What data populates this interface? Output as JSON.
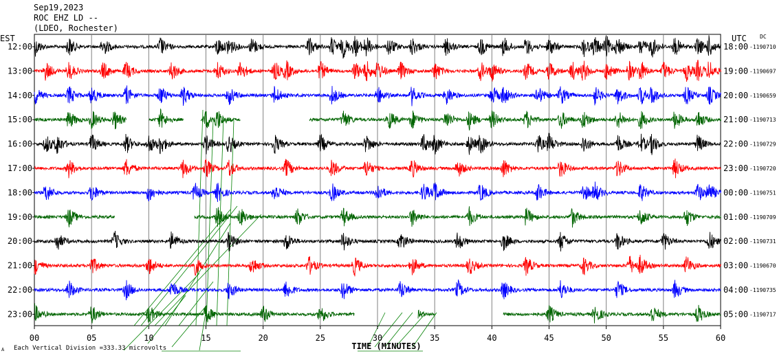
{
  "header": {
    "date": "Sep19,2023",
    "station": "ROC EHZ LD --",
    "network": "(LDEO, Rochester)"
  },
  "left_axis_label": "EST",
  "right_axis_label": "UTC",
  "dc_label": "DC",
  "footer": {
    "scale_note": "Each Vertical Division =",
    "scale_value": "333.33 microvolts",
    "corner_mark": "A"
  },
  "colors": {
    "trace_cycle": [
      "#000000",
      "#ff0000",
      "#0000ff",
      "#006400"
    ],
    "grid": "#808080",
    "overlay": "#008000"
  },
  "chart_data": {
    "type": "helicorder",
    "xlabel": "TIME (MINUTES)",
    "xlim": [
      0,
      60
    ],
    "x_ticks": [
      "00",
      "05",
      "10",
      "15",
      "20",
      "25",
      "30",
      "35",
      "40",
      "45",
      "50",
      "55",
      "60"
    ],
    "rows": [
      {
        "est": "12:00",
        "utc": "18:00",
        "dc": "-1190710",
        "bursts": [
          0,
          3,
          6,
          11,
          16,
          17,
          19,
          24,
          26,
          27,
          28,
          29,
          31,
          33,
          36,
          39,
          41,
          43,
          45,
          48,
          49,
          50,
          51,
          53,
          54,
          56,
          58,
          59
        ],
        "gaps": []
      },
      {
        "est": "13:00",
        "utc": "19:00",
        "dc": "-1190697",
        "bursts": [
          1,
          3,
          6,
          8,
          12,
          16,
          18,
          21,
          22,
          25,
          28,
          29,
          30,
          32,
          35,
          39,
          40,
          43,
          45,
          47,
          48,
          50,
          52,
          53,
          55,
          57,
          58,
          59
        ],
        "gaps": []
      },
      {
        "est": "14:00",
        "utc": "20:00",
        "dc": "-1190659",
        "bursts": [
          0,
          3,
          5,
          8,
          11,
          13,
          17,
          21,
          26,
          30,
          33,
          36,
          40,
          41,
          44,
          46,
          49,
          51,
          53,
          54,
          57,
          59
        ],
        "gaps": []
      },
      {
        "est": "15:00",
        "utc": "21:00",
        "dc": "-1190713",
        "bursts": [
          3,
          5,
          7,
          11,
          15,
          16,
          27,
          31,
          33,
          36,
          38,
          40,
          43,
          46,
          48,
          51,
          53,
          56,
          58
        ],
        "gaps": [
          [
            8,
            10
          ],
          [
            13,
            14.5
          ],
          [
            18,
            24
          ]
        ]
      },
      {
        "est": "16:00",
        "utc": "22:00",
        "dc": "-1190729",
        "bursts": [
          1,
          2,
          5,
          8,
          10,
          11,
          15,
          17,
          21,
          25,
          29,
          34,
          35,
          38,
          39,
          44,
          45,
          48,
          51,
          53,
          54,
          58
        ],
        "gaps": []
      },
      {
        "est": "17:00",
        "utc": "23:00",
        "dc": "-1190720",
        "bursts": [
          3,
          8,
          13,
          15,
          17,
          22,
          26,
          29,
          33,
          37,
          41,
          46,
          51,
          56
        ],
        "gaps": []
      },
      {
        "est": "18:00",
        "utc": "00:00",
        "dc": "-1190751",
        "bursts": [
          1,
          5,
          10,
          14,
          16,
          21,
          26,
          30,
          34,
          35,
          39,
          44,
          48,
          49,
          53,
          58,
          59
        ],
        "gaps": []
      },
      {
        "est": "19:00",
        "utc": "01:00",
        "dc": "-1190709",
        "bursts": [
          3,
          16,
          18,
          23,
          27,
          33,
          38,
          43,
          47,
          53,
          57
        ],
        "gaps": [
          [
            7,
            14
          ]
        ]
      },
      {
        "est": "20:00",
        "utc": "02:00",
        "dc": "-1190731",
        "bursts": [
          2,
          7,
          12,
          17,
          22,
          27,
          32,
          37,
          41,
          46,
          51,
          55,
          59
        ],
        "gaps": []
      },
      {
        "est": "21:00",
        "utc": "03:00",
        "dc": "-1190670",
        "bursts": [
          0,
          5,
          10,
          14,
          19,
          24,
          28,
          33,
          38,
          43,
          48,
          52,
          53,
          57
        ],
        "gaps": []
      },
      {
        "est": "22:00",
        "utc": "04:00",
        "dc": "-1190735",
        "bursts": [
          3,
          8,
          12,
          17,
          22,
          27,
          32,
          37,
          41,
          46,
          51,
          56
        ],
        "gaps": []
      },
      {
        "est": "23:00",
        "utc": "05:00",
        "dc": "-1190717",
        "bursts": [
          0,
          5,
          10,
          15,
          20,
          25,
          30,
          33,
          45,
          49,
          54,
          58
        ],
        "gaps": [
          [
            28,
            33.5
          ],
          [
            35,
            41
          ]
        ]
      }
    ]
  }
}
